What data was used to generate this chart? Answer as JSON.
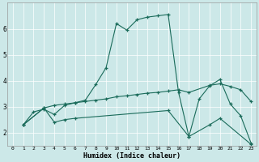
{
  "title": "",
  "xlabel": "Humidex (Indice chaleur)",
  "bg_color": "#cce8e8",
  "line_color": "#1a6b5a",
  "xlim": [
    -0.5,
    23.5
  ],
  "ylim": [
    1.5,
    7.0
  ],
  "yticks": [
    2,
    3,
    4,
    5,
    6
  ],
  "xticks": [
    0,
    1,
    2,
    3,
    4,
    5,
    6,
    7,
    8,
    9,
    10,
    11,
    12,
    13,
    14,
    15,
    16,
    17,
    18,
    19,
    20,
    21,
    22,
    23
  ],
  "series1_x": [
    1,
    2,
    3,
    4,
    5,
    6,
    7,
    8,
    9,
    10,
    11,
    12,
    13,
    14,
    15,
    16,
    17,
    18,
    19,
    20,
    21,
    22,
    23
  ],
  "series1_y": [
    2.3,
    2.8,
    2.9,
    2.7,
    3.05,
    3.15,
    3.25,
    3.85,
    4.5,
    6.2,
    5.95,
    6.35,
    6.45,
    6.5,
    6.55,
    3.55,
    1.85,
    3.3,
    3.8,
    4.05,
    3.1,
    2.65,
    1.6
  ],
  "series2_x": [
    1,
    3,
    4,
    5,
    6,
    7,
    8,
    9,
    10,
    11,
    12,
    13,
    14,
    15,
    16,
    17,
    19,
    20,
    21,
    22,
    23
  ],
  "series2_y": [
    2.3,
    2.95,
    3.05,
    3.1,
    3.15,
    3.2,
    3.25,
    3.3,
    3.38,
    3.42,
    3.47,
    3.52,
    3.55,
    3.6,
    3.65,
    3.55,
    3.82,
    3.88,
    3.78,
    3.65,
    3.2
  ],
  "series3_x": [
    1,
    3,
    4,
    5,
    6,
    15,
    17,
    19,
    20,
    23
  ],
  "series3_y": [
    2.3,
    2.95,
    2.4,
    2.5,
    2.55,
    2.85,
    1.85,
    2.3,
    2.55,
    1.55
  ]
}
